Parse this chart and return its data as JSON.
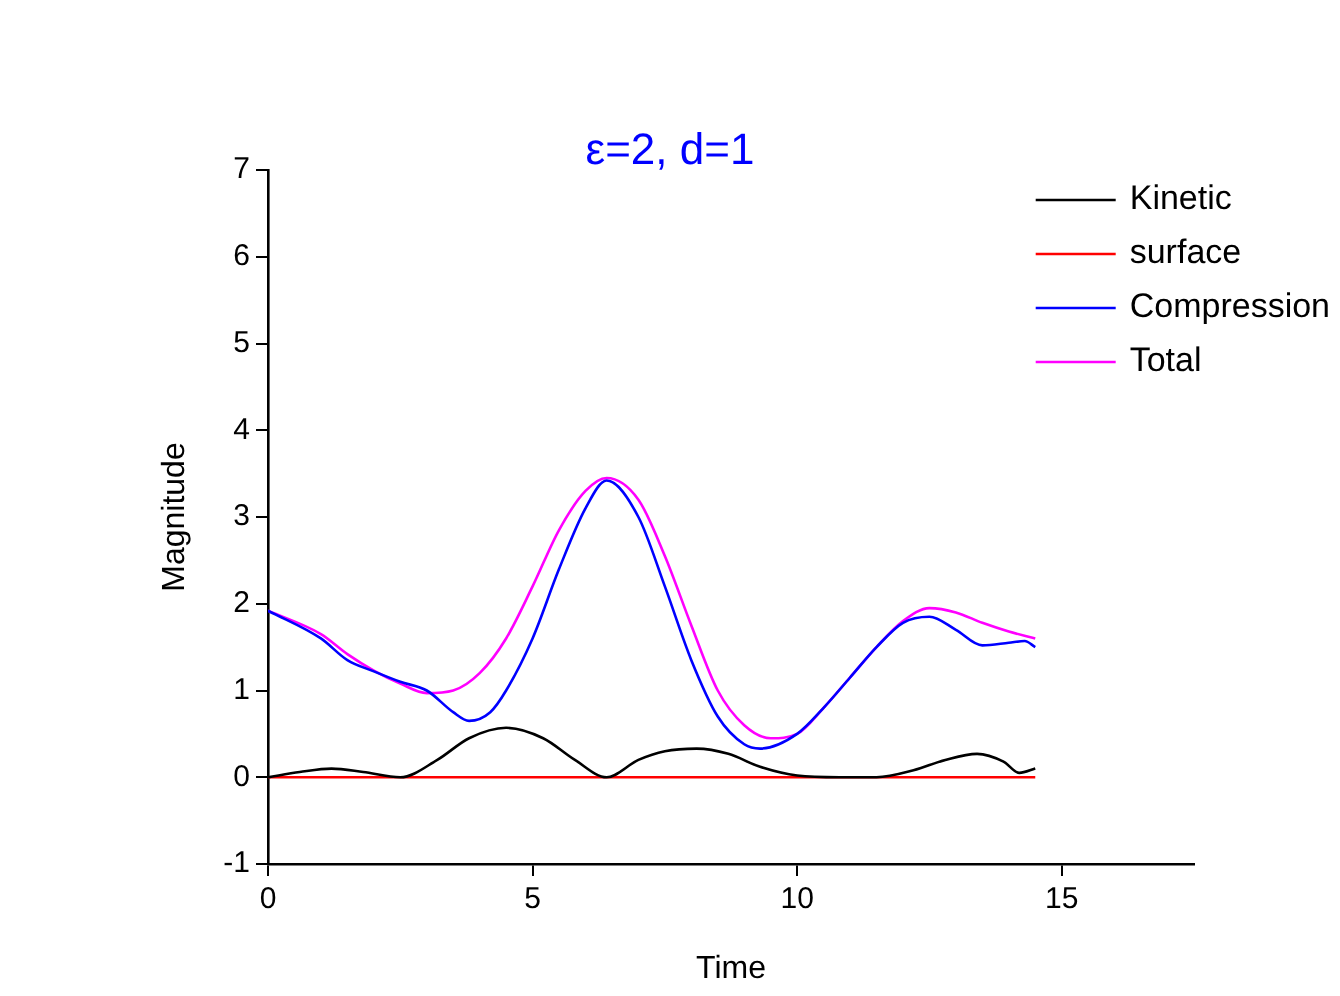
{
  "chart_data": {
    "type": "line",
    "title": "ε=2, d=1",
    "xlabel": "Time",
    "ylabel": "Magnitude",
    "xlim": [
      0,
      17.5
    ],
    "xticks": [
      0,
      5,
      10,
      15
    ],
    "ylim": [
      -1,
      7
    ],
    "yticks": [
      -1,
      0,
      1,
      2,
      3,
      4,
      5,
      6,
      7
    ],
    "grid": false,
    "legend": "top right",
    "marker": "none",
    "line_style": "solid",
    "series": [
      {
        "name": "Kinetic",
        "color": "#000000",
        "x": [
          0,
          0.6,
          1.2,
          1.8,
          2.5,
          3.2,
          3.8,
          4.5,
          5.2,
          5.8,
          6.4,
          7,
          7.5,
          8.1,
          8.7,
          9.3,
          10,
          10.8,
          11.5,
          12.2,
          12.8,
          13.4,
          13.9,
          14.2,
          14.5
        ],
        "values": [
          0,
          0.06,
          0.1,
          0.06,
          0,
          0.2,
          0.45,
          0.57,
          0.45,
          0.2,
          0,
          0.2,
          0.3,
          0.33,
          0.27,
          0.12,
          0.02,
          0,
          0,
          0.08,
          0.2,
          0.27,
          0.18,
          0.05,
          0.1
        ]
      },
      {
        "name": "surface",
        "color": "#ff0000",
        "x": [
          0,
          14.5
        ],
        "values": [
          0,
          0
        ]
      },
      {
        "name": "Compression",
        "color": "#0000ff",
        "x": [
          0,
          1,
          1.5,
          2,
          2.5,
          3,
          3.5,
          3.8,
          4.2,
          4.5,
          5,
          5.5,
          6,
          6.4,
          7,
          7.5,
          8,
          8.5,
          9,
          9.3,
          10,
          10.5,
          11,
          11.5,
          12,
          12.5,
          13,
          13.5,
          14,
          14.3,
          14.5
        ],
        "values": [
          1.92,
          1.6,
          1.35,
          1.22,
          1.1,
          1.0,
          0.75,
          0.65,
          0.75,
          1.0,
          1.6,
          2.4,
          3.1,
          3.42,
          3.0,
          2.2,
          1.35,
          0.7,
          0.38,
          0.33,
          0.5,
          0.8,
          1.15,
          1.5,
          1.78,
          1.85,
          1.7,
          1.52,
          1.55,
          1.57,
          1.5
        ]
      },
      {
        "name": "Total",
        "color": "#ff00ff",
        "x": [
          0,
          1,
          1.5,
          2,
          2.5,
          3,
          3.5,
          4,
          4.5,
          5,
          5.5,
          6,
          6.4,
          7,
          7.5,
          8,
          8.5,
          9,
          9.5,
          10,
          10.5,
          11,
          11.5,
          12,
          12.5,
          13,
          13.5,
          14,
          14.5
        ],
        "values": [
          1.92,
          1.65,
          1.42,
          1.23,
          1.08,
          0.97,
          1.0,
          1.2,
          1.6,
          2.2,
          2.85,
          3.3,
          3.45,
          3.2,
          2.55,
          1.75,
          1.0,
          0.6,
          0.45,
          0.5,
          0.8,
          1.15,
          1.5,
          1.8,
          1.95,
          1.9,
          1.78,
          1.68,
          1.6
        ]
      }
    ]
  }
}
